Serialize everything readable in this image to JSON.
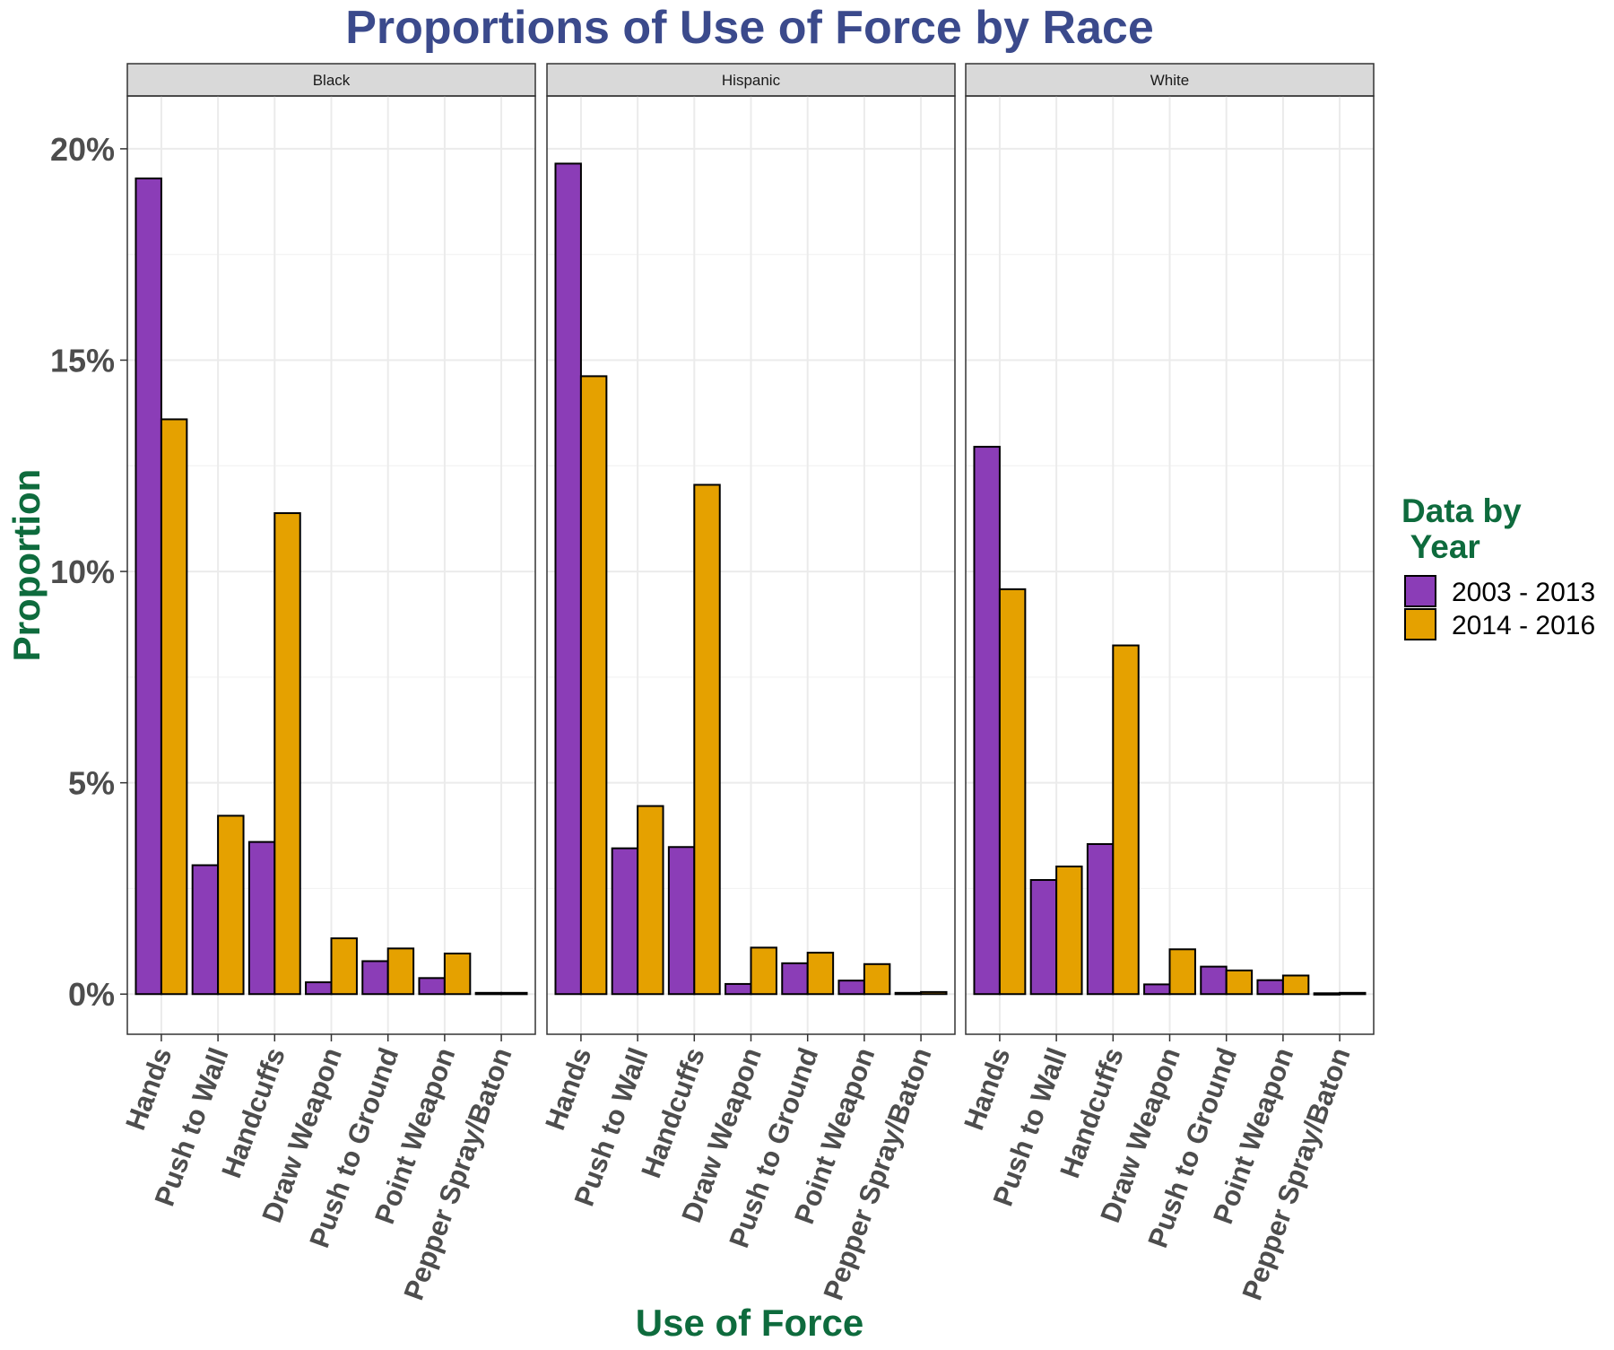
{
  "chart_data": {
    "type": "bar",
    "title": "Proportions of Use of Force by Race",
    "xlabel": "Use of Force",
    "ylabel": "Proportion",
    "ylim": [
      -0.0095,
      0.2125
    ],
    "yticks": [
      0,
      0.05,
      0.1,
      0.15,
      0.2
    ],
    "ytick_labels": [
      "0%",
      "5%",
      "10%",
      "15%",
      "20%"
    ],
    "grid": true,
    "legend": {
      "title_line1": "Data by",
      "title_line2": " Year",
      "placement": "right"
    },
    "categories": [
      "Hands",
      "Push to Wall",
      "Handcuffs",
      "Draw Weapon",
      "Push to Ground",
      "Point Weapon",
      "Pepper Spray/Baton"
    ],
    "facets": [
      {
        "name": "Black",
        "series": [
          {
            "name": "2003 - 2013",
            "values": [
              0.193,
              0.0305,
              0.036,
              0.0028,
              0.0078,
              0.0038,
              0.0003
            ]
          },
          {
            "name": "2014 - 2016",
            "values": [
              0.136,
              0.0422,
              0.1138,
              0.0132,
              0.0108,
              0.0096,
              0.0003
            ]
          }
        ]
      },
      {
        "name": "Hispanic",
        "series": [
          {
            "name": "2003 - 2013",
            "values": [
              0.1965,
              0.0345,
              0.0348,
              0.0024,
              0.0073,
              0.0032,
              0.0003
            ]
          },
          {
            "name": "2014 - 2016",
            "values": [
              0.1462,
              0.0445,
              0.1205,
              0.011,
              0.0098,
              0.0071,
              0.0005
            ]
          }
        ]
      },
      {
        "name": "White",
        "series": [
          {
            "name": "2003 - 2013",
            "values": [
              0.1295,
              0.027,
              0.0355,
              0.0023,
              0.0065,
              0.0033,
              0.0002
            ]
          },
          {
            "name": "2014 - 2016",
            "values": [
              0.0958,
              0.0302,
              0.0825,
              0.0106,
              0.0056,
              0.0044,
              0.0003
            ]
          }
        ]
      }
    ]
  },
  "colors": {
    "series_1": "#8b3db7",
    "series_2": "#e5a100",
    "title": "#3b4a8c",
    "axis_title": "#0e6b3d",
    "strip_fill": "#d9d9d9",
    "grid": "#ebebeb"
  }
}
